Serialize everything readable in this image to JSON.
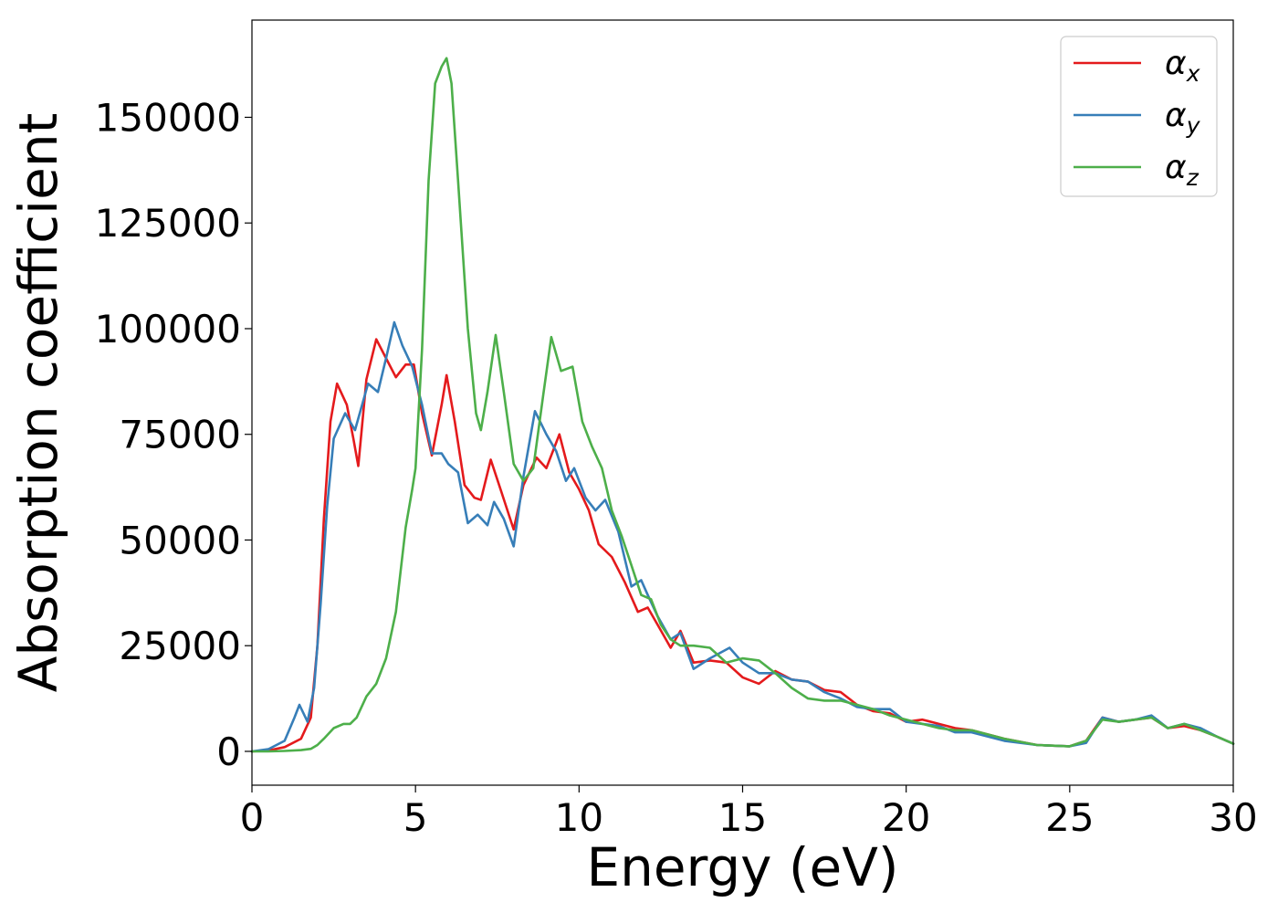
{
  "chart_data": {
    "type": "line",
    "title": "",
    "xlabel": "Energy (eV)",
    "ylabel": "Absorption coefficient",
    "xlim": [
      0,
      30
    ],
    "ylim": [
      -8000,
      173000
    ],
    "xticks": [
      0,
      5,
      10,
      15,
      20,
      25,
      30
    ],
    "yticks": [
      0,
      25000,
      50000,
      75000,
      100000,
      125000,
      150000
    ],
    "grid": false,
    "legend_position": "top-right",
    "series": [
      {
        "name": "α_x",
        "label_base": "α",
        "label_sub": "x",
        "color": "#e41a1c",
        "x": [
          0,
          0.5,
          1.0,
          1.5,
          1.8,
          2.0,
          2.2,
          2.4,
          2.6,
          2.9,
          3.1,
          3.25,
          3.5,
          3.8,
          4.1,
          4.4,
          4.7,
          4.95,
          5.2,
          5.5,
          5.8,
          5.95,
          6.2,
          6.5,
          6.8,
          7.0,
          7.3,
          7.6,
          8.0,
          8.3,
          8.7,
          9.0,
          9.4,
          9.7,
          10.0,
          10.3,
          10.6,
          11.0,
          11.4,
          11.8,
          12.1,
          12.4,
          12.8,
          13.1,
          13.5,
          14.0,
          14.5,
          15.0,
          15.5,
          16.0,
          16.5,
          17.0,
          17.5,
          18.0,
          18.5,
          19.0,
          19.5,
          20.0,
          20.5,
          21.0,
          21.5,
          22.0,
          23.0,
          24.0,
          25.0,
          25.5,
          26.0,
          26.5,
          27.0,
          27.5,
          28.0,
          28.5,
          29.0,
          29.5,
          30.0
        ],
        "values": [
          0,
          200,
          1000,
          3000,
          8000,
          25000,
          55000,
          78000,
          87000,
          82000,
          74000,
          67500,
          88000,
          97500,
          93000,
          88500,
          91500,
          91500,
          80000,
          70000,
          82000,
          89000,
          78000,
          63000,
          60000,
          59500,
          69000,
          62000,
          52500,
          63000,
          69500,
          67000,
          75000,
          66000,
          62000,
          57000,
          49000,
          46000,
          40000,
          33000,
          34000,
          30000,
          24500,
          28500,
          21000,
          21500,
          21000,
          17500,
          16000,
          19000,
          17000,
          16500,
          14500,
          14000,
          11000,
          9500,
          9000,
          7000,
          7500,
          6500,
          5500,
          5000,
          3000,
          1500,
          1200,
          2500,
          8000,
          7000,
          7500,
          8000,
          5500,
          6000,
          5000,
          3500,
          1800
        ]
      },
      {
        "name": "α_y",
        "label_base": "α",
        "label_sub": "y",
        "color": "#377eb8",
        "x": [
          0,
          0.5,
          1.0,
          1.3,
          1.45,
          1.7,
          1.9,
          2.1,
          2.3,
          2.5,
          2.85,
          3.15,
          3.55,
          3.85,
          4.1,
          4.35,
          4.6,
          4.9,
          5.2,
          5.5,
          5.8,
          6.0,
          6.3,
          6.6,
          6.9,
          7.2,
          7.4,
          7.7,
          8.0,
          8.3,
          8.65,
          9.0,
          9.3,
          9.6,
          9.85,
          10.2,
          10.5,
          10.8,
          11.2,
          11.6,
          11.9,
          12.1,
          12.4,
          12.8,
          13.1,
          13.5,
          14.0,
          14.6,
          15.0,
          15.5,
          16.0,
          16.5,
          17.0,
          17.5,
          18.0,
          18.5,
          19.0,
          19.5,
          20.0,
          20.5,
          21.0,
          21.5,
          22.0,
          23.0,
          24.0,
          25.0,
          25.5,
          26.0,
          26.5,
          27.0,
          27.5,
          28.0,
          28.5,
          29.0,
          29.5,
          30.0
        ],
        "values": [
          0,
          500,
          2500,
          8000,
          11000,
          7000,
          15000,
          35000,
          58000,
          74000,
          80000,
          76000,
          87000,
          85000,
          93000,
          101500,
          96000,
          91000,
          82000,
          70500,
          70500,
          68000,
          66000,
          54000,
          56000,
          53500,
          59000,
          55000,
          48500,
          65000,
          80500,
          75000,
          71000,
          64000,
          67000,
          60000,
          57000,
          59500,
          52000,
          39000,
          40500,
          37000,
          32000,
          26500,
          28000,
          19500,
          22000,
          24500,
          21000,
          18500,
          18500,
          17000,
          16500,
          14000,
          12500,
          10500,
          10000,
          10000,
          7000,
          6500,
          6000,
          4500,
          4500,
          2500,
          1500,
          1200,
          2000,
          8000,
          7000,
          7500,
          8500,
          5500,
          6500,
          5500,
          3500,
          1800
        ]
      },
      {
        "name": "α_z",
        "label_base": "α",
        "label_sub": "z",
        "color": "#4daf4a",
        "x": [
          0,
          0.5,
          1.0,
          1.5,
          1.8,
          2.0,
          2.2,
          2.5,
          2.8,
          3.0,
          3.2,
          3.5,
          3.8,
          4.1,
          4.4,
          4.7,
          4.9,
          5.0,
          5.2,
          5.4,
          5.6,
          5.8,
          5.95,
          6.1,
          6.3,
          6.6,
          6.85,
          7.0,
          7.2,
          7.45,
          7.7,
          8.0,
          8.3,
          8.6,
          8.9,
          9.15,
          9.45,
          9.8,
          10.1,
          10.4,
          10.7,
          11.0,
          11.3,
          11.6,
          11.9,
          12.2,
          12.5,
          12.8,
          13.1,
          13.5,
          14.0,
          14.5,
          15.0,
          15.5,
          16.0,
          16.5,
          17.0,
          17.5,
          18.0,
          18.5,
          19.0,
          19.5,
          20.0,
          20.5,
          21.0,
          21.5,
          22.0,
          23.0,
          24.0,
          25.0,
          25.5,
          26.0,
          26.5,
          27.0,
          27.5,
          28.0,
          28.5,
          29.0,
          29.5,
          30.0
        ],
        "values": [
          0,
          0,
          100,
          300,
          600,
          1500,
          3000,
          5500,
          6500,
          6500,
          8000,
          13000,
          16000,
          22000,
          33000,
          53000,
          62000,
          67000,
          95000,
          135000,
          158000,
          162000,
          164000,
          158000,
          135000,
          100000,
          80000,
          76000,
          85000,
          98500,
          85000,
          68000,
          64000,
          67000,
          84000,
          98000,
          90000,
          91000,
          78000,
          72000,
          67000,
          57000,
          51000,
          44000,
          37000,
          36000,
          30000,
          26500,
          25000,
          25000,
          24500,
          21000,
          22000,
          21500,
          18500,
          15000,
          12500,
          12000,
          12000,
          11000,
          10000,
          8500,
          7500,
          6500,
          5500,
          5000,
          5000,
          3000,
          1500,
          1200,
          2500,
          7500,
          7000,
          7500,
          8000,
          5500,
          6500,
          5000,
          3500,
          1800
        ]
      }
    ]
  }
}
